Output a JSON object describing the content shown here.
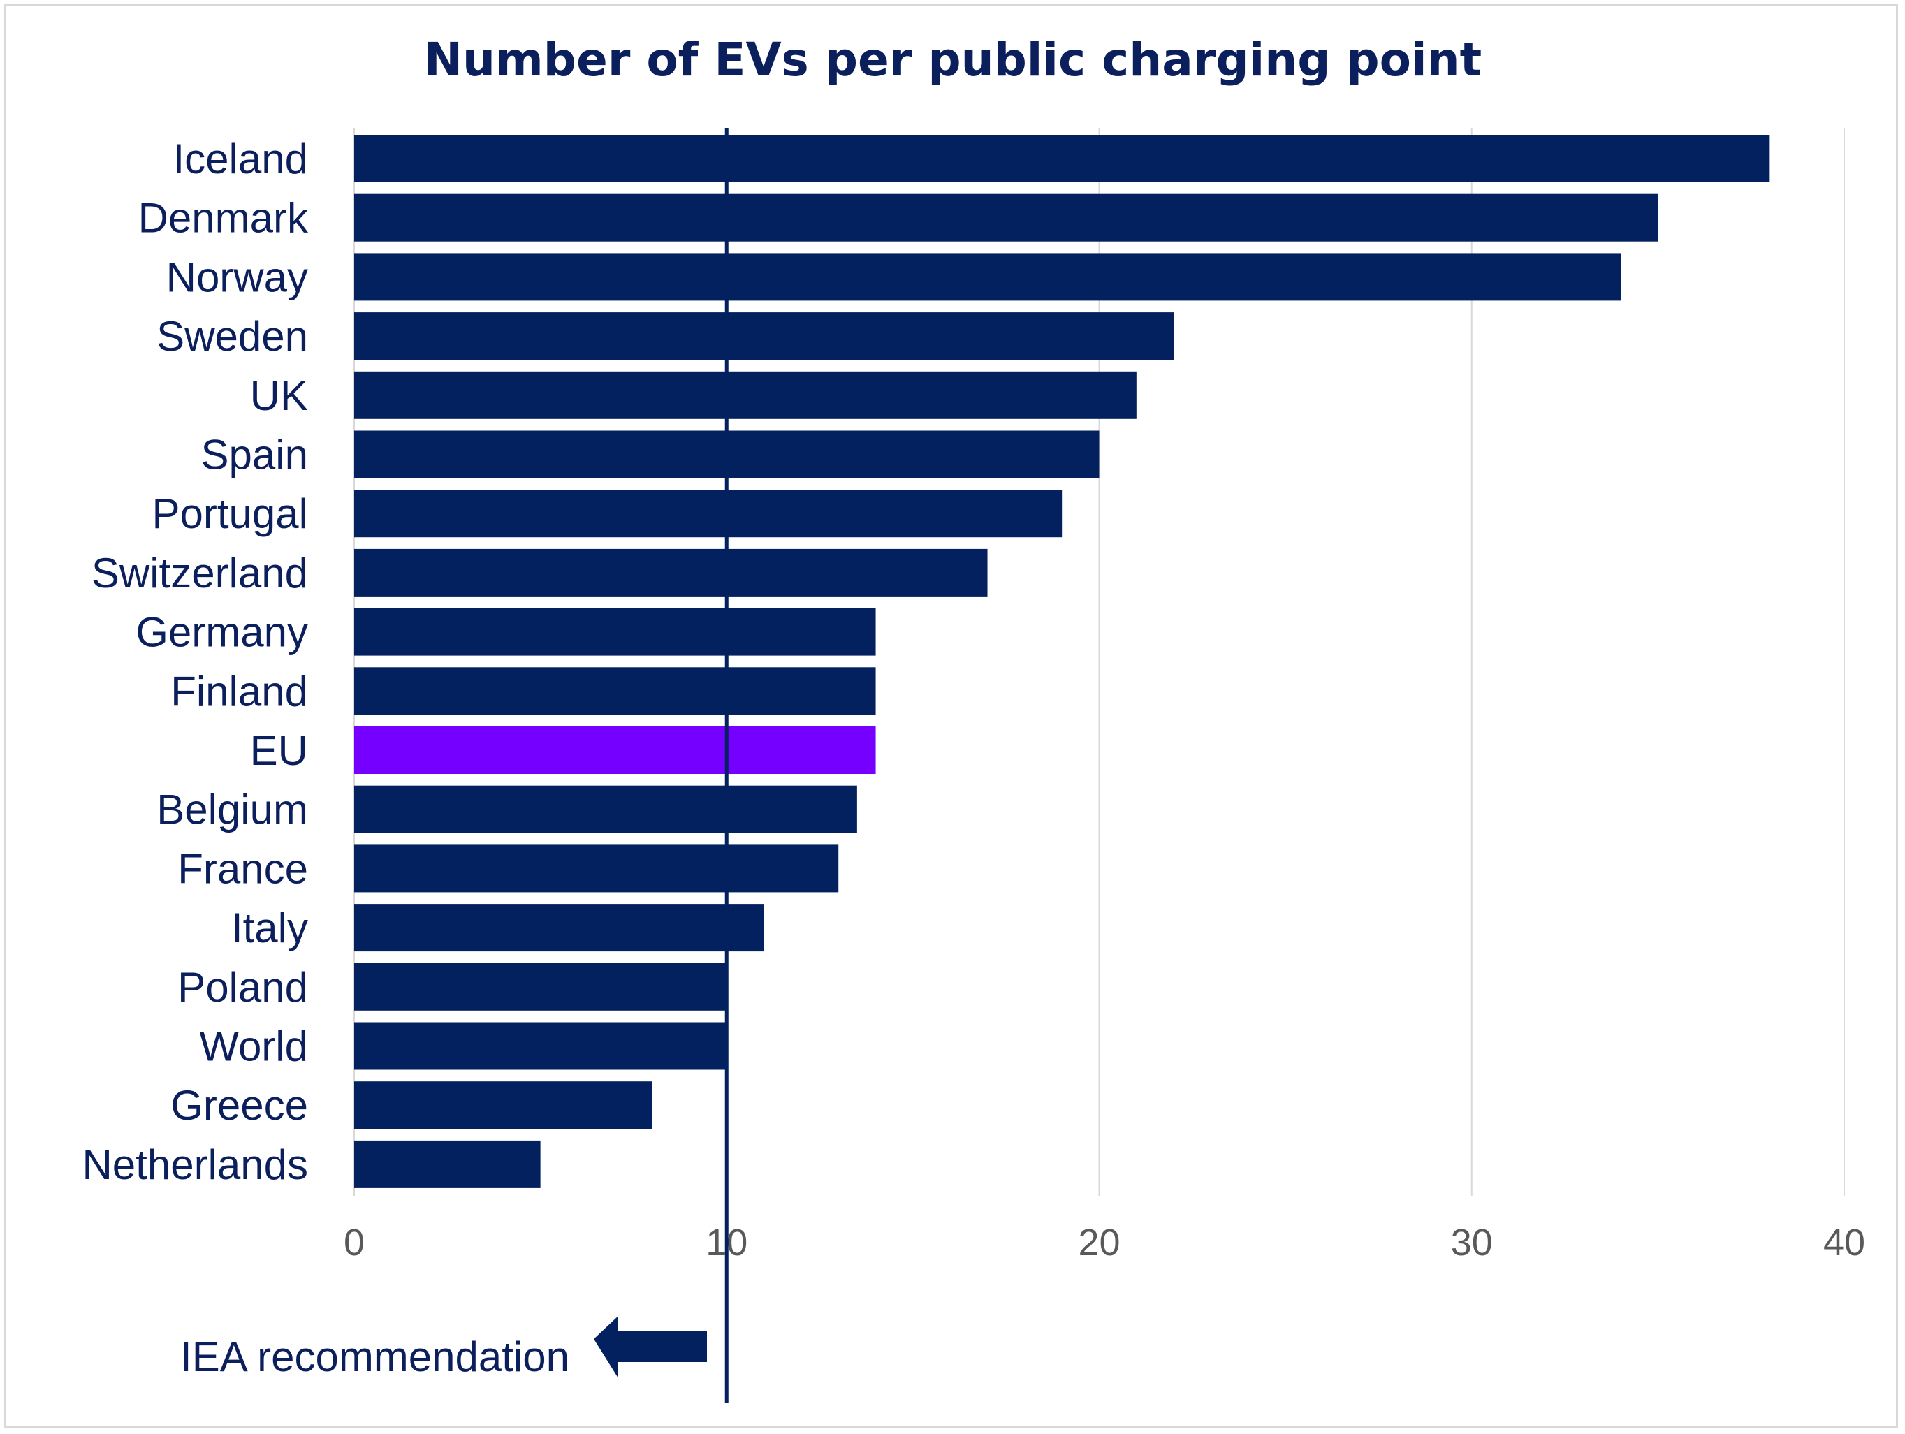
{
  "chart_data": {
    "type": "bar",
    "orientation": "horizontal",
    "title": "Number of EVs per public charging point",
    "categories": [
      "Iceland",
      "Denmark",
      "Norway",
      "Sweden",
      "UK",
      "Spain",
      "Portugal",
      "Switzerland",
      "Germany",
      "Finland",
      "EU",
      "Belgium",
      "France",
      "Italy",
      "Poland",
      "World",
      "Greece",
      "Netherlands"
    ],
    "values": [
      38,
      35,
      34,
      22,
      21,
      20,
      19,
      17,
      14,
      14,
      14,
      13.5,
      13,
      11,
      10,
      10,
      8,
      5
    ],
    "xlim": [
      0,
      40
    ],
    "x_ticks": [
      "0",
      "10",
      "20",
      "30",
      "40"
    ],
    "xlabel": "",
    "ylabel": "",
    "grid": true,
    "highlight_category": "EU",
    "colors": {
      "bar": "#03215e",
      "highlight": "#7600ff",
      "grid": "#d9d9d9",
      "text": "#0b1f5c",
      "tick_text": "#595959"
    },
    "reference_line": {
      "value": 10,
      "label": "IEA recommendation",
      "arrow": "left-arrow-icon"
    }
  }
}
